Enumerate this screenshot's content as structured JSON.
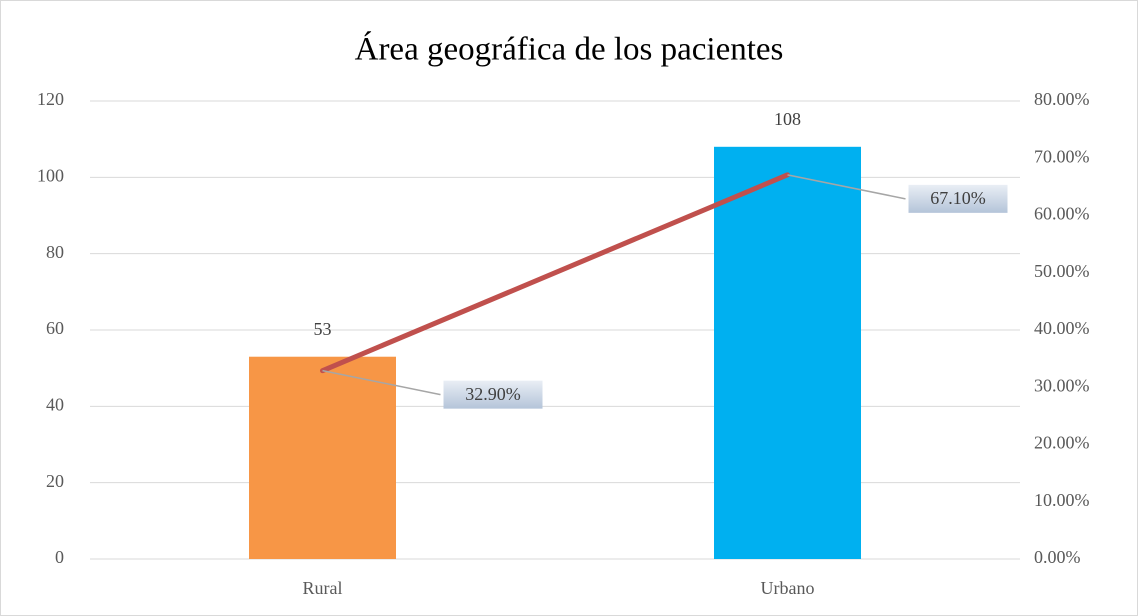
{
  "chart_data": {
    "type": "bar",
    "title": "Área geográfica de los pacientes",
    "categories": [
      "Rural",
      "Urbano"
    ],
    "series": [
      {
        "type": "bar",
        "colors": [
          "#f79646",
          "#00b0f0"
        ],
        "values": [
          53,
          108
        ]
      },
      {
        "type": "line",
        "axis": "y2",
        "color": "#c0504d",
        "values": [
          32.9,
          67.1
        ],
        "value_labels": [
          "32.90%",
          "67.10%"
        ]
      }
    ],
    "ylim": [
      0,
      120
    ],
    "yticks": [
      0,
      20,
      40,
      60,
      80,
      100,
      120
    ],
    "y2lim": [
      0,
      80
    ],
    "y2ticks": [
      {
        "value": 0,
        "label": "0.00%"
      },
      {
        "value": 10,
        "label": "10.00%"
      },
      {
        "value": 20,
        "label": "20.00%"
      },
      {
        "value": 30,
        "label": "30.00%"
      },
      {
        "value": 40,
        "label": "40.00%"
      },
      {
        "value": 50,
        "label": "50.00%"
      },
      {
        "value": 60,
        "label": "60.00%"
      },
      {
        "value": 70,
        "label": "70.00%"
      },
      {
        "value": 80,
        "label": "80.00%"
      }
    ],
    "grid": true
  }
}
